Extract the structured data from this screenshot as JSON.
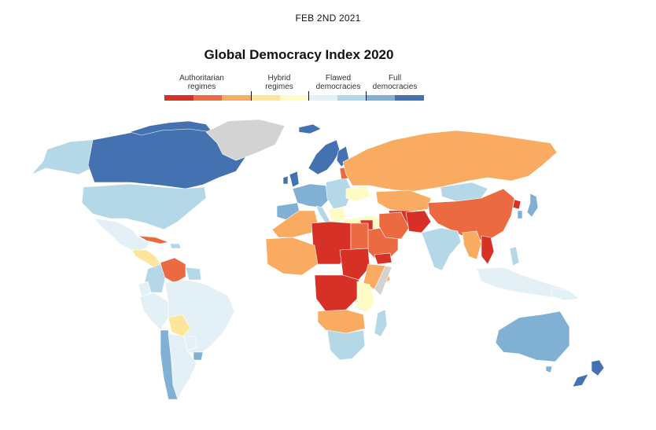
{
  "date": "FEB 2ND 2021",
  "title": "Global Democracy Index 2020",
  "legend": {
    "categories": [
      {
        "label_top": "Authoritarian",
        "label_bottom": "regimes"
      },
      {
        "label_top": "Hybrid",
        "label_bottom": "regimes"
      },
      {
        "label_top": "Flawed",
        "label_bottom": "democracies"
      },
      {
        "label_top": "Full",
        "label_bottom": "democracies"
      }
    ],
    "colors": [
      "#d73027",
      "#ec6a41",
      "#f9ac61",
      "#fde69a",
      "#fffbc5",
      "#e3f1f7",
      "#b4d8e8",
      "#80b0d3",
      "#4472b0"
    ]
  },
  "palette": {
    "full": "#4472b0",
    "full_light": "#80b0d3",
    "flawed": "#b4d8e8",
    "flawed_light": "#e3f1f7",
    "hybrid": "#fffbc5",
    "hybrid_dark": "#fde69a",
    "auth_light": "#f9ac61",
    "auth": "#ec6a41",
    "auth_dark": "#d73027",
    "no_data": "#d3d3d3"
  }
}
